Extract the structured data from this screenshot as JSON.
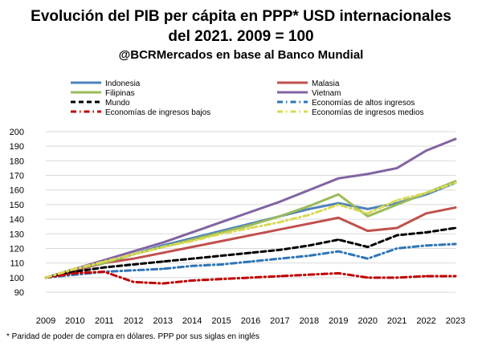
{
  "title_line1": "Evolución del PIB per cápita en PPP* USD internacionales",
  "title_line2": "del 2021. 2009 = 100",
  "subtitle": "@BCRMercados en base al Banco Mundial",
  "footnote": "* Paridad de poder de compra en dólares. PPP por sus siglas en inglés",
  "chart_data": {
    "type": "line",
    "x": [
      2009,
      2010,
      2011,
      2012,
      2013,
      2014,
      2015,
      2016,
      2017,
      2018,
      2019,
      2020,
      2021,
      2022,
      2023
    ],
    "ylim": [
      90,
      200
    ],
    "yticks": [
      90,
      100,
      110,
      120,
      130,
      140,
      150,
      160,
      170,
      180,
      190,
      200
    ],
    "grid": true,
    "legend": "top",
    "series": [
      {
        "name": "Indonesia",
        "color": "#4f81bd",
        "style": "solid",
        "values": [
          100,
          105,
          110,
          116,
          122,
          127,
          132,
          137,
          142,
          147,
          151,
          147,
          151,
          157,
          165
        ]
      },
      {
        "name": "Malasia",
        "color": "#c0504d",
        "style": "solid",
        "values": [
          100,
          105,
          110,
          113,
          117,
          121,
          125,
          129,
          133,
          137,
          141,
          132,
          134,
          144,
          148
        ]
      },
      {
        "name": "Filipinas",
        "color": "#9bbb59",
        "style": "solid",
        "values": [
          100,
          106,
          110,
          116,
          121,
          126,
          131,
          136,
          142,
          149,
          157,
          142,
          150,
          158,
          166
        ]
      },
      {
        "name": "Vietnam",
        "color": "#8064a2",
        "style": "solid",
        "values": [
          100,
          106,
          112,
          118,
          124,
          131,
          138,
          145,
          152,
          160,
          168,
          171,
          175,
          187,
          195
        ]
      },
      {
        "name": "Mundo",
        "color": "#000000",
        "style": "dash",
        "values": [
          100,
          104,
          107,
          109,
          111,
          113,
          115,
          117,
          119,
          122,
          126,
          121,
          129,
          131,
          134
        ]
      },
      {
        "name": "Economías de altos ingresos",
        "color": "#2e75b6",
        "style": "dashdot",
        "values": [
          100,
          102,
          104,
          105,
          106,
          108,
          109,
          111,
          113,
          115,
          118,
          113,
          120,
          122,
          123
        ]
      },
      {
        "name": "Economías de ingresos bajos",
        "color": "#c00000",
        "style": "dashdot",
        "values": [
          100,
          103,
          104,
          97,
          96,
          98,
          99,
          100,
          101,
          102,
          103,
          100,
          100,
          101,
          101
        ]
      },
      {
        "name": "Economías de ingresos medios",
        "color": "#d9d955",
        "style": "dashdot",
        "values": [
          100,
          106,
          111,
          116,
          121,
          125,
          130,
          134,
          138,
          143,
          150,
          144,
          153,
          158,
          165
        ]
      }
    ]
  }
}
